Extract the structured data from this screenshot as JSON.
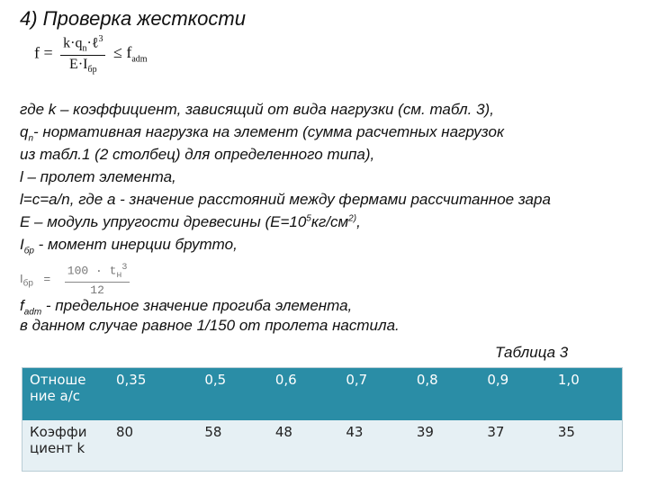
{
  "title": "4) Проверка жесткости",
  "formula1": {
    "lhs": "f =",
    "numerator": "k·q",
    "num_sub": "n",
    "num_rest": "·ℓ",
    "num_sup": "3",
    "denominator": "E·I",
    "den_sub": "бр",
    "rel": "≤ f",
    "rel_sub": "adm"
  },
  "lines": [
    {
      "pre": "где k – коэффициент, зависящий от вида нагрузки (см. табл. 3),"
    },
    {
      "pre": "q",
      "sub": "n",
      "post": "- нормативная нагрузка на элемент (сумма расчетных нагрузок"
    },
    {
      "pre": "из табл.1 (2 столбец) для определенного типа),"
    },
    {
      "pre": "l – пролет элемента,"
    },
    {
      "pre": "l=c=a/n, где а - значение расстояний между фермами рассчитанное зара"
    },
    {
      "pre": "E – модуль упругости древесины (E=10",
      "sup": "5",
      "post": "кг/см",
      "sup2": "2)",
      "post2": ","
    },
    {
      "pre": "I",
      "sub": "бр",
      "post": " - момент инерции брутто,"
    }
  ],
  "formula2": {
    "lhs": "I",
    "lhs_sub": "бр",
    "eq": "=",
    "numerator": "100 · t",
    "num_sub": "н",
    "num_sup": "3",
    "denominator": "12"
  },
  "lines2": [
    {
      "pre": "f",
      "sub": "adm",
      "post": " - предельное значение прогиба элемента,"
    },
    {
      "pre": "в данном случае равное 1/150 от пролета настила."
    }
  ],
  "caption": "Таблица 3",
  "table": {
    "row1": [
      "Отноше ние а/с",
      "0,35",
      "0,5",
      "0,6",
      "0,7",
      "0,8",
      "0,9",
      "1,0"
    ],
    "row2": [
      "Коэффи циент k",
      "80",
      "58",
      "48",
      "43",
      "39",
      "37",
      "35"
    ]
  },
  "colors": {
    "header_bg": "#2a8da6",
    "row_bg": "#e6f0f4"
  }
}
